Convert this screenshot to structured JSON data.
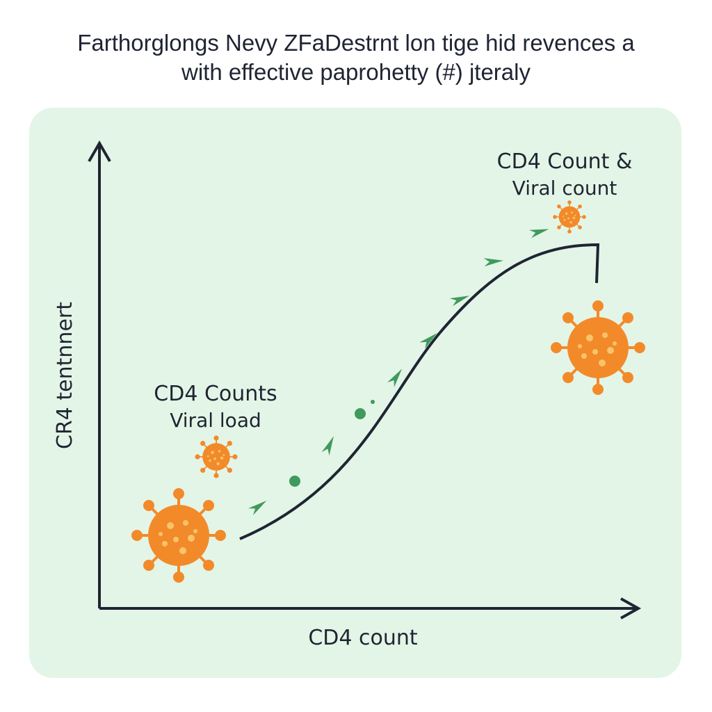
{
  "header": {
    "title_lines": [
      "Farthorglongs Nevy ZFaDestrnt lon tige hid revences a",
      "with effective paprohetty (#) jteraly"
    ]
  },
  "diagram": {
    "y_axis_label": "CR4  tentnnert",
    "x_axis_label": "CD4 count",
    "annotations": [
      {
        "lines": [
          "CD4 Counts",
          "Viral load"
        ]
      },
      {
        "lines": [
          "CD4 Count &",
          "Viral count"
        ]
      }
    ]
  }
}
